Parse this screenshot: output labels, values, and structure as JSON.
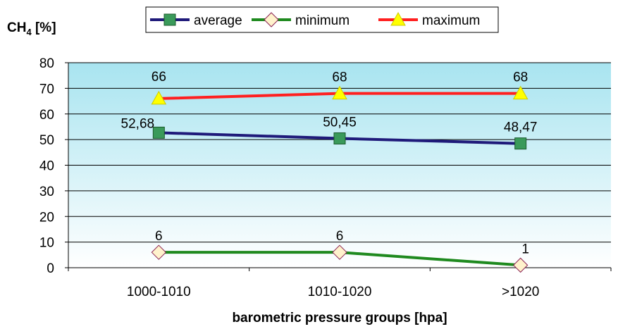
{
  "chart_data": {
    "type": "line",
    "ylabel_main": "CH",
    "ylabel_sub": "4",
    "ylabel_rest": " [%]",
    "xlabel": "barometric pressure groups [hpa]",
    "categories": [
      "1000-1010",
      "1010-1020",
      ">1020"
    ],
    "ylim": [
      0,
      80
    ],
    "yticks": [
      "0",
      "10",
      "20",
      "30",
      "40",
      "50",
      "60",
      "70",
      "80"
    ],
    "grid": true,
    "legend_position": "top",
    "series": [
      {
        "name": "average",
        "values": [
          52.68,
          50.45,
          48.47
        ],
        "labels": [
          "52,68",
          "50,45",
          "48,47"
        ],
        "color": "#1f1a7a",
        "marker": "square",
        "marker_color": "#3a9a5a"
      },
      {
        "name": "minimum",
        "values": [
          6,
          6,
          1
        ],
        "labels": [
          "6",
          "6",
          "1"
        ],
        "color": "#1f8a1f",
        "marker": "diamond",
        "marker_color": "#fff2cc"
      },
      {
        "name": "maximum",
        "values": [
          66,
          68,
          68
        ],
        "labels": [
          "66",
          "68",
          "68"
        ],
        "color": "#ff2020",
        "marker": "triangle",
        "marker_color": "#ffff00"
      }
    ]
  }
}
